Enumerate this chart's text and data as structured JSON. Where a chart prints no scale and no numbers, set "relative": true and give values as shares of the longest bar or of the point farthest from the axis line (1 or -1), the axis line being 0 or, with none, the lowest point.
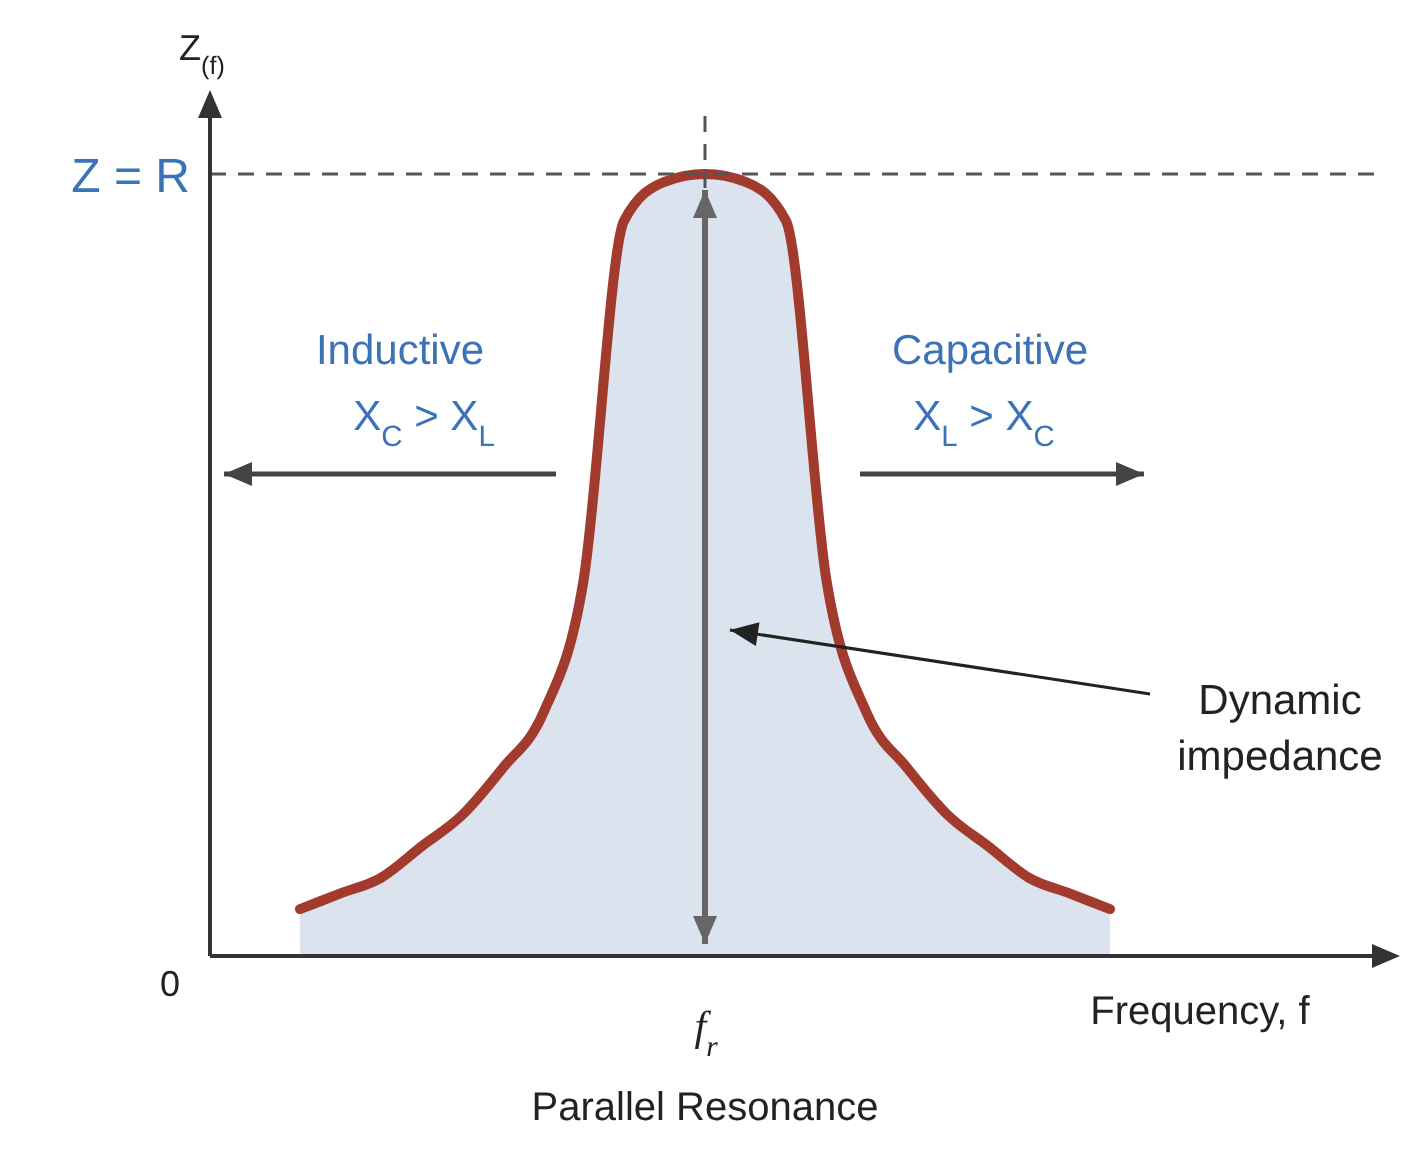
{
  "chart_data": {
    "type": "area",
    "title": "Parallel Resonance",
    "xlabel": "Frequency, f",
    "ylabel": "Z$_{(f)}$",
    "categories": [
      null,
      null,
      null,
      null,
      null,
      null,
      null,
      null,
      null,
      null,
      null,
      null,
      null,
      null,
      null,
      null,
      null,
      null,
      null,
      null,
      null
    ],
    "series": [
      {
        "color": "#a33a2e",
        "values": [
          0.06,
          0.08,
          0.1,
          0.14,
          0.18,
          0.24,
          0.31,
          0.48,
          0.94,
          0.99,
          1.0,
          0.99,
          0.94,
          0.48,
          0.31,
          0.24,
          0.18,
          0.14,
          0.1,
          0.08,
          0.06
        ]
      }
    ],
    "relative": true,
    "ref_lines": [
      {
        "axis": "y",
        "value": 1,
        "label": "Z = R",
        "color": "#555555",
        "line_style": "dashed"
      }
    ],
    "annotations": [
      "Inductive",
      "X$_{C}$ > X$_{L}$",
      "Capacitive",
      "X$_{L}$ > X$_{C}$",
      "Dynamic impedance",
      "0",
      "f$_{r}$"
    ]
  }
}
